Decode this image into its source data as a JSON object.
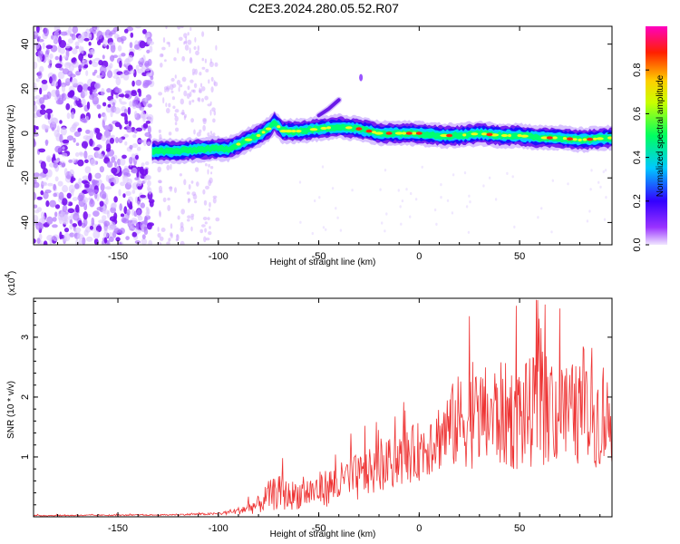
{
  "title": "C2E3.2024.280.05.52.R07",
  "chart_data": [
    {
      "type": "heatmap",
      "panel": "spectrogram",
      "xlabel": "Height of straight line (km)",
      "ylabel": "Frequency (Hz)",
      "xlim": [
        -192,
        96
      ],
      "ylim": [
        -50,
        48
      ],
      "xticks": [
        -150,
        -100,
        -50,
        0,
        50
      ],
      "yticks": [
        -40,
        -20,
        0,
        20,
        40
      ],
      "colorbar": {
        "label": "Normalized spectral amplitude",
        "range": [
          0,
          1
        ],
        "ticks": [
          0.0,
          0.2,
          0.4,
          0.6,
          0.8
        ],
        "colormap": [
          "#f0e6ff",
          "#9a33ff",
          "#3300ff",
          "#00c8ff",
          "#00ff60",
          "#c8ff00",
          "#ffd000",
          "#ff2000",
          "#ff00c0"
        ]
      },
      "noise_region_km": [
        -192,
        -133
      ],
      "band_start_km": -133,
      "ridge": {
        "x": [
          -133,
          -120,
          -105,
          -95,
          -88,
          -80,
          -75,
          -72,
          -68,
          -60,
          -50,
          -40,
          -30,
          -20,
          -10,
          0,
          10,
          20,
          30,
          40,
          50,
          60,
          70,
          80,
          96
        ],
        "y": [
          -8,
          -8,
          -7,
          -7,
          -4,
          -1,
          2,
          5,
          1,
          1,
          2,
          3,
          2,
          0,
          0,
          0,
          -1,
          -1,
          0,
          -1,
          -1,
          -2,
          -2,
          -3,
          -2
        ]
      },
      "branch": {
        "x": [
          -50,
          -45,
          -40
        ],
        "y": [
          8,
          11,
          15
        ]
      },
      "hot_spots_x": [
        -30,
        -25,
        -15,
        -5,
        0,
        15,
        35,
        65,
        75,
        85
      ]
    },
    {
      "type": "line",
      "panel": "snr",
      "xlabel": "Height of straight line (km)",
      "ylabel": "SNR (10 * v/v)",
      "multiplier_label": "(x10",
      "multiplier_exp": "4",
      "multiplier_close": ")",
      "xlim": [
        -192,
        96
      ],
      "ylim": [
        0,
        3.65
      ],
      "xticks": [
        -150,
        -100,
        -50,
        0,
        50
      ],
      "yticks": [
        1,
        2,
        3
      ],
      "color": "#ee3333",
      "envelope": {
        "x": [
          -192,
          -130,
          -100,
          -90,
          -80,
          -75,
          -70,
          -65,
          -60,
          -50,
          -40,
          -30,
          -20,
          -10,
          0,
          10,
          20,
          30,
          40,
          50,
          60,
          70,
          80,
          96
        ],
        "base": [
          0.02,
          0.03,
          0.05,
          0.1,
          0.2,
          0.35,
          0.4,
          0.35,
          0.38,
          0.45,
          0.55,
          0.65,
          0.8,
          0.95,
          1.1,
          1.35,
          1.6,
          1.65,
          1.7,
          1.65,
          1.8,
          1.75,
          1.7,
          1.6
        ],
        "spread": [
          0.01,
          0.01,
          0.02,
          0.06,
          0.15,
          0.25,
          0.3,
          0.25,
          0.25,
          0.3,
          0.35,
          0.4,
          0.4,
          0.45,
          0.5,
          0.6,
          0.8,
          0.85,
          0.9,
          0.9,
          0.95,
          0.9,
          0.85,
          0.8
        ]
      },
      "peaks": [
        {
          "x": -68,
          "y": 0.98
        },
        {
          "x": -27,
          "y": 1.52
        },
        {
          "x": 25,
          "y": 3.35
        },
        {
          "x": 59,
          "y": 3.62
        },
        {
          "x": 65,
          "y": 2.0
        },
        {
          "x": 70,
          "y": 3.48
        },
        {
          "x": 86,
          "y": 2.82
        }
      ]
    }
  ]
}
